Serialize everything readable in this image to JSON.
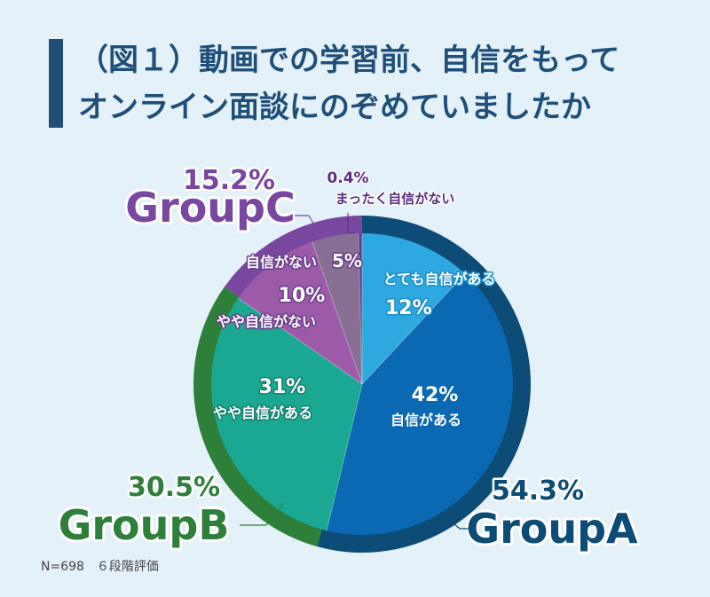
{
  "title": {
    "line1": "（図１）動画での学習前、自信をもって",
    "line2": "オンライン面談にのぞめていましたか"
  },
  "note": "N=698　６段階評価",
  "chart_data": {
    "type": "pie",
    "slices": [
      {
        "label": "とても自信がある",
        "value": 12,
        "display": "12%",
        "group": "GroupA",
        "color": "#2ea8e0"
      },
      {
        "label": "自信がある",
        "value": 42,
        "display": "42%",
        "group": "GroupA",
        "color": "#0b68b2"
      },
      {
        "label": "やや自信がある",
        "value": 31,
        "display": "31%",
        "group": "GroupB",
        "color": "#1aa893"
      },
      {
        "label": "やや自信がない",
        "value": 10,
        "display": "10%",
        "group": "GroupC",
        "color": "#9d5aa8"
      },
      {
        "label": "自信がない",
        "value": 5,
        "display": "5%",
        "group": "GroupC",
        "color": "#876f94"
      },
      {
        "label": "まったく自信がない",
        "value": 0.4,
        "display": "0.4%",
        "group": "GroupC",
        "color": "#6a3e8a"
      }
    ],
    "groups": [
      {
        "name": "GroupA",
        "value": 54.3,
        "display": "54.3%",
        "color": "#0e4c78"
      },
      {
        "name": "GroupB",
        "value": 30.5,
        "display": "30.5%",
        "color": "#2e7f39"
      },
      {
        "name": "GroupC",
        "value": 15.2,
        "display": "15.2%",
        "color": "#7a47a0"
      }
    ]
  }
}
